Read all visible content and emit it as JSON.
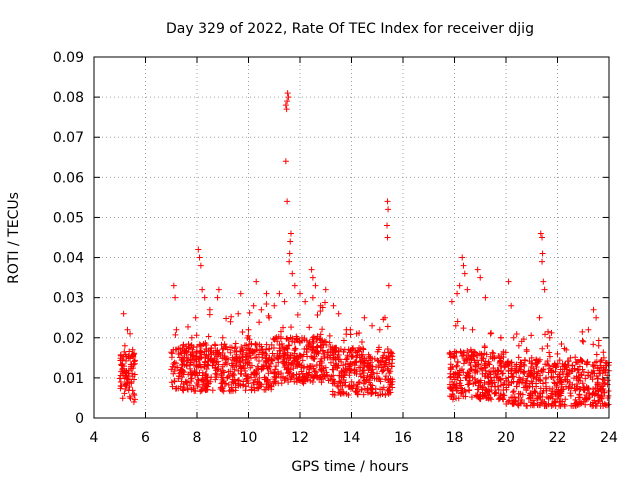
{
  "chart_data": {
    "type": "scatter",
    "title": "Day 329 of 2022, Rate Of TEC Index for receiver djig",
    "xlabel": "GPS time / hours",
    "ylabel": "ROTI / TECUs",
    "xlim": [
      4,
      24
    ],
    "ylim": [
      0,
      0.09
    ],
    "x_ticks": [
      "4",
      "6",
      "8",
      "10",
      "12",
      "14",
      "16",
      "18",
      "20",
      "22",
      "24"
    ],
    "y_ticks": [
      "0",
      "0.01",
      "0.02",
      "0.03",
      "0.04",
      "0.05",
      "0.06",
      "0.07",
      "0.08",
      "0.09"
    ],
    "grid": true,
    "marker": "+",
    "series_color": "#ff0000",
    "observed_hours": [
      [
        5.0,
        5.6
      ],
      [
        7.0,
        15.6
      ],
      [
        17.8,
        24.0
      ]
    ],
    "data_gaps_hours": [
      [
        5.6,
        7.0
      ],
      [
        15.6,
        17.8
      ]
    ],
    "points": [
      [
        5.05,
        0.008
      ],
      [
        5.1,
        0.012
      ],
      [
        5.15,
        0.026
      ],
      [
        5.2,
        0.018
      ],
      [
        5.3,
        0.022
      ],
      [
        5.35,
        0.015
      ],
      [
        5.4,
        0.021
      ],
      [
        5.45,
        0.009
      ],
      [
        5.5,
        0.017
      ],
      [
        5.55,
        0.004
      ],
      [
        7.1,
        0.033
      ],
      [
        7.15,
        0.03
      ],
      [
        7.2,
        0.022
      ],
      [
        7.4,
        0.012
      ],
      [
        7.6,
        0.015
      ],
      [
        7.8,
        0.02
      ],
      [
        7.95,
        0.025
      ],
      [
        8.05,
        0.042
      ],
      [
        8.1,
        0.04
      ],
      [
        8.15,
        0.038
      ],
      [
        8.2,
        0.032
      ],
      [
        8.3,
        0.03
      ],
      [
        8.5,
        0.027
      ],
      [
        8.8,
        0.03
      ],
      [
        8.85,
        0.032
      ],
      [
        9.0,
        0.02
      ],
      [
        9.3,
        0.024
      ],
      [
        9.6,
        0.026
      ],
      [
        9.7,
        0.031
      ],
      [
        10.0,
        0.022
      ],
      [
        10.2,
        0.028
      ],
      [
        10.3,
        0.034
      ],
      [
        10.5,
        0.027
      ],
      [
        10.7,
        0.031
      ],
      [
        10.8,
        0.025
      ],
      [
        11.0,
        0.028
      ],
      [
        11.2,
        0.031
      ],
      [
        11.4,
        0.029
      ],
      [
        11.45,
        0.078
      ],
      [
        11.48,
        0.077
      ],
      [
        11.5,
        0.079
      ],
      [
        11.52,
        0.081
      ],
      [
        11.55,
        0.08
      ],
      [
        11.45,
        0.064
      ],
      [
        11.5,
        0.054
      ],
      [
        11.65,
        0.046
      ],
      [
        11.62,
        0.044
      ],
      [
        11.6,
        0.041
      ],
      [
        11.58,
        0.039
      ],
      [
        11.7,
        0.036
      ],
      [
        11.8,
        0.033
      ],
      [
        12.0,
        0.031
      ],
      [
        12.2,
        0.029
      ],
      [
        12.45,
        0.037
      ],
      [
        12.5,
        0.035
      ],
      [
        12.6,
        0.033
      ],
      [
        12.8,
        0.028
      ],
      [
        13.0,
        0.032
      ],
      [
        13.3,
        0.028
      ],
      [
        13.5,
        0.026
      ],
      [
        13.8,
        0.022
      ],
      [
        14.2,
        0.021
      ],
      [
        14.5,
        0.025
      ],
      [
        14.8,
        0.023
      ],
      [
        15.1,
        0.022
      ],
      [
        15.3,
        0.025
      ],
      [
        15.4,
        0.054
      ],
      [
        15.42,
        0.052
      ],
      [
        15.38,
        0.048
      ],
      [
        15.4,
        0.045
      ],
      [
        15.45,
        0.033
      ],
      [
        17.9,
        0.029
      ],
      [
        18.05,
        0.023
      ],
      [
        18.1,
        0.031
      ],
      [
        18.2,
        0.033
      ],
      [
        18.3,
        0.04
      ],
      [
        18.35,
        0.038
      ],
      [
        18.4,
        0.036
      ],
      [
        18.5,
        0.032
      ],
      [
        18.7,
        0.022
      ],
      [
        18.9,
        0.037
      ],
      [
        19.0,
        0.035
      ],
      [
        19.2,
        0.03
      ],
      [
        19.4,
        0.021
      ],
      [
        19.8,
        0.02
      ],
      [
        20.1,
        0.034
      ],
      [
        20.2,
        0.028
      ],
      [
        20.3,
        0.02
      ],
      [
        20.5,
        0.018
      ],
      [
        20.8,
        0.017
      ],
      [
        21.0,
        0.015
      ],
      [
        21.3,
        0.025
      ],
      [
        21.35,
        0.046
      ],
      [
        21.4,
        0.045
      ],
      [
        21.42,
        0.041
      ],
      [
        21.4,
        0.039
      ],
      [
        21.45,
        0.034
      ],
      [
        21.5,
        0.032
      ],
      [
        21.7,
        0.02
      ],
      [
        22.0,
        0.016
      ],
      [
        22.5,
        0.015
      ],
      [
        22.8,
        0.014
      ],
      [
        23.0,
        0.019
      ],
      [
        23.2,
        0.022
      ],
      [
        23.4,
        0.027
      ],
      [
        23.5,
        0.025
      ],
      [
        23.6,
        0.018
      ],
      [
        23.8,
        0.015
      ],
      [
        23.9,
        0.013
      ]
    ]
  }
}
